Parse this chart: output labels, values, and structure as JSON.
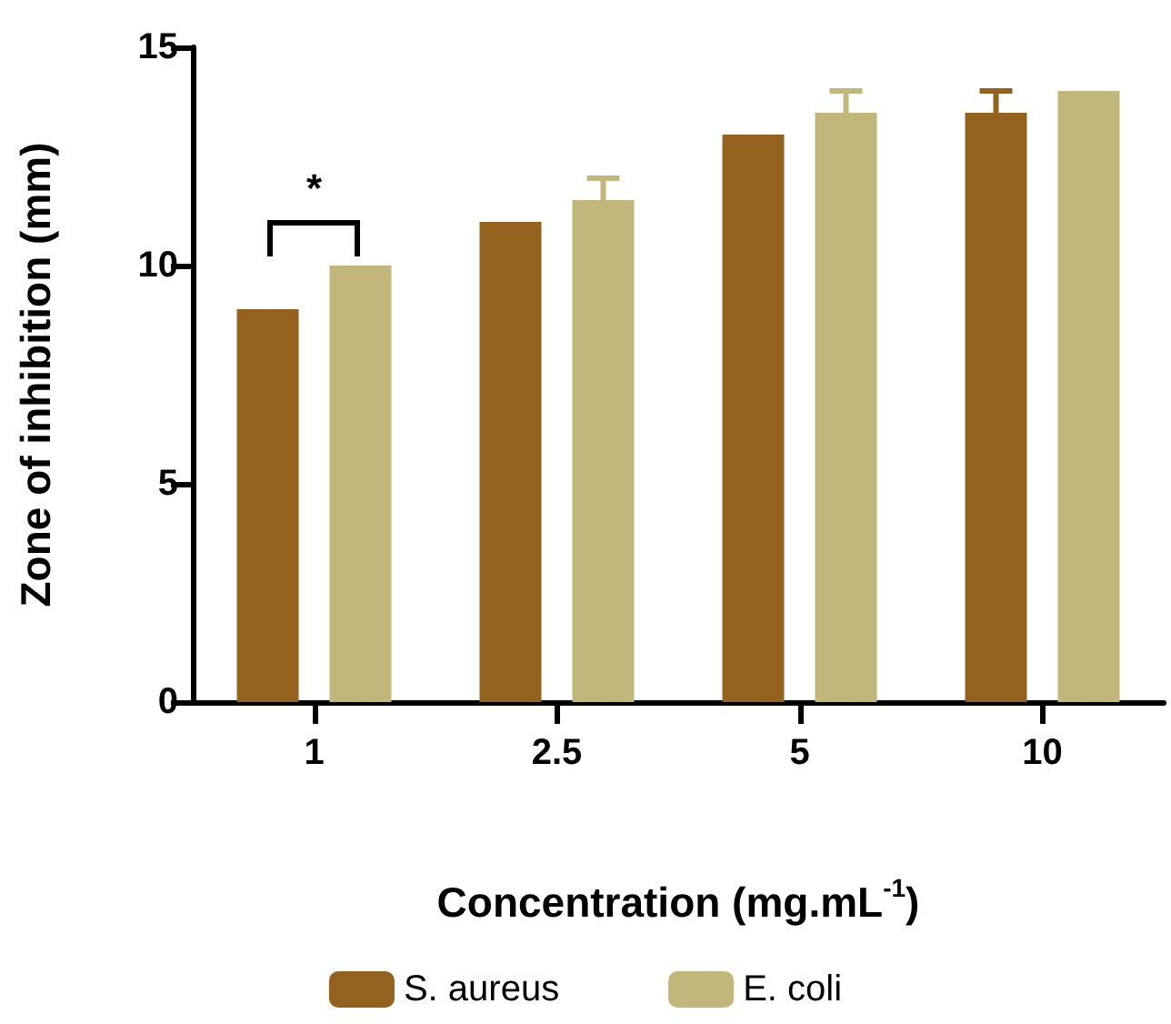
{
  "chart_data": {
    "type": "bar",
    "xlabel": "Concentration (mg.mL$^{-1}$)",
    "ylabel": "Zone of inhibition (mm)",
    "categories": [
      "1",
      "2.5",
      "5",
      "10"
    ],
    "series": [
      {
        "name": "S. aureus",
        "color": "#93621f",
        "values": [
          9,
          11,
          13,
          13.5
        ],
        "errors": [
          null,
          null,
          null,
          0.5
        ]
      },
      {
        "name": "E. coli",
        "color": "#c2b77b",
        "values": [
          10,
          11.5,
          13.5,
          14
        ],
        "errors": [
          null,
          0.5,
          0.5,
          null
        ]
      }
    ],
    "annotations": [
      "*"
    ],
    "ylim": [
      0,
      15
    ],
    "yticks": [
      0,
      5,
      10,
      15
    ],
    "grid": false,
    "legend": "bottom"
  }
}
